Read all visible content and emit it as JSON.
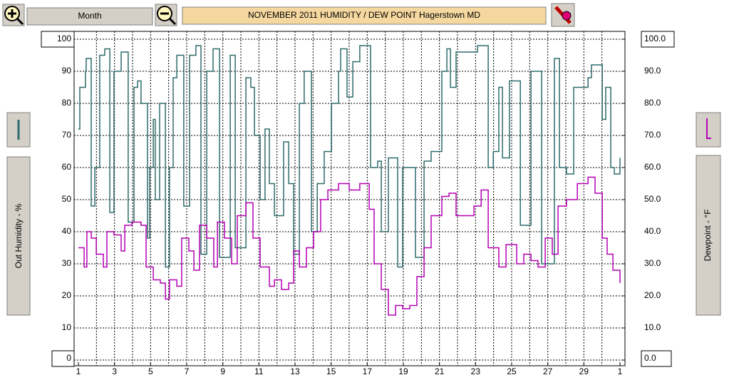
{
  "toolbar": {
    "period": "Month"
  },
  "chart_data": {
    "type": "line",
    "title": "NOVEMBER 2011  HUMIDITY / DEW POINT  Hagerstown MD",
    "ylabel": "Out Humidity - %",
    "y2label": "Dewpoint - °F",
    "xlim": [
      1,
      31
    ],
    "xticks": [
      1,
      3,
      5,
      7,
      9,
      11,
      13,
      15,
      17,
      19,
      21,
      23,
      25,
      27,
      29,
      {
        "value": 31,
        "label": "1"
      }
    ],
    "xgrid": [
      2,
      3,
      4,
      5,
      6,
      7,
      8,
      9,
      10,
      11,
      12,
      13,
      14,
      15,
      16,
      17,
      18,
      19,
      20,
      21,
      22,
      23,
      24,
      25,
      26,
      27,
      28,
      29,
      30
    ],
    "ylim": [
      0,
      100
    ],
    "yticks": [
      0,
      10,
      20,
      30,
      40,
      50,
      60,
      70,
      80,
      90,
      100
    ],
    "y2lim": [
      0,
      100
    ],
    "y2ticks": [
      {
        "value": 0,
        "label": "0.0"
      },
      {
        "value": 10,
        "label": "10.0"
      },
      {
        "value": 20,
        "label": "20.0"
      },
      {
        "value": 30,
        "label": "30.0"
      },
      {
        "value": 40,
        "label": "40.0"
      },
      {
        "value": 50,
        "label": "50.0"
      },
      {
        "value": 60,
        "label": "60.0"
      },
      {
        "value": 70,
        "label": "70.0"
      },
      {
        "value": 80,
        "label": "80.0"
      },
      {
        "value": 90,
        "label": "90.0"
      },
      {
        "value": 100,
        "label": "100.0"
      }
    ],
    "grid": true,
    "series": [
      {
        "color": "#2f6b6b",
        "x": [
          1.0,
          1.08,
          1.39,
          1.43,
          1.71,
          1.91,
          2.18,
          2.46,
          2.74,
          2.97,
          3.37,
          3.76,
          4.08,
          4.28,
          4.47,
          4.83,
          4.95,
          5.15,
          5.26,
          5.5,
          5.82,
          6.05,
          6.25,
          6.45,
          6.84,
          7.16,
          7.51,
          7.79,
          8.11,
          8.46,
          8.82,
          9.41,
          9.69,
          10.28,
          10.55,
          10.75,
          11.07,
          11.34,
          11.58,
          11.86,
          12.37,
          12.65,
          12.92,
          13.24,
          13.51,
          13.91,
          14.23,
          14.62,
          15.02,
          15.41,
          15.53,
          15.88,
          16.2,
          16.59,
          16.99,
          17.19,
          17.58,
          17.78,
          18.17,
          18.69,
          18.96,
          19.67,
          20.15,
          20.54,
          21.13,
          21.41,
          21.61,
          21.92,
          23.11,
          23.46,
          23.7,
          23.98,
          24.29,
          24.49,
          24.88,
          25.48,
          26.07,
          26.66,
          27.37,
          27.65,
          28.04,
          28.44,
          29.23,
          29.42,
          30.02,
          30.21,
          30.49,
          30.69,
          31.0
        ],
        "values": [
          72,
          85,
          90,
          94,
          48,
          60,
          95,
          97,
          46,
          90,
          96,
          43,
          85,
          87,
          80,
          38,
          60,
          75,
          50,
          80,
          29,
          60,
          88,
          95,
          48,
          95,
          98,
          33,
          90,
          97,
          32,
          95,
          35,
          88,
          85,
          70,
          50,
          72,
          55,
          45,
          68,
          55,
          33,
          80,
          90,
          40,
          55,
          65,
          80,
          90,
          97,
          82,
          93,
          98,
          98,
          60,
          62,
          40,
          63,
          29,
          60,
          32,
          62,
          65,
          90,
          97,
          85,
          96,
          98,
          98,
          60,
          65,
          85,
          63,
          87,
          42,
          90,
          30,
          94,
          60,
          58,
          85,
          88,
          92,
          75,
          85,
          60,
          58,
          63
        ]
      },
      {
        "color": "#b400b4",
        "axis": "y2",
        "x": [
          1.0,
          1.32,
          1.47,
          1.71,
          1.99,
          2.38,
          2.58,
          2.97,
          3.37,
          3.57,
          3.96,
          4.47,
          4.75,
          5.15,
          5.54,
          5.82,
          6.05,
          6.45,
          6.72,
          7.12,
          7.4,
          7.71,
          8.11,
          8.5,
          8.7,
          9.09,
          9.49,
          9.8,
          10.28,
          10.67,
          11.07,
          11.38,
          11.58,
          11.86,
          12.25,
          12.65,
          12.92,
          13.24,
          13.63,
          14.03,
          14.42,
          14.82,
          15.41,
          16.0,
          16.59,
          17.11,
          17.38,
          17.78,
          18.17,
          18.57,
          18.96,
          19.36,
          19.75,
          20.15,
          20.54,
          21.13,
          21.53,
          21.92,
          22.52,
          22.91,
          23.31,
          23.7,
          24.29,
          24.69,
          25.28,
          25.67,
          26.07,
          26.46,
          26.86,
          27.25,
          27.57,
          28.04,
          28.64,
          29.23,
          29.62,
          30.02,
          30.29,
          30.61,
          31.0
        ],
        "values": [
          35,
          29,
          40,
          38,
          33,
          29,
          40,
          39,
          34,
          42,
          43,
          42,
          29,
          25,
          24,
          19,
          25,
          23,
          38,
          34,
          28,
          42,
          38,
          29,
          43,
          38,
          30,
          45,
          49,
          38,
          29,
          29,
          23,
          25,
          22,
          24,
          34,
          29,
          35,
          40,
          50,
          53,
          55,
          53,
          55,
          47,
          30,
          22,
          14,
          17,
          16,
          17,
          26,
          35,
          45,
          51,
          52,
          45,
          45,
          48,
          53,
          35,
          29,
          36,
          30,
          33,
          31,
          29,
          38,
          33,
          48,
          50,
          55,
          57,
          52,
          38,
          33,
          28,
          24
        ]
      }
    ]
  }
}
